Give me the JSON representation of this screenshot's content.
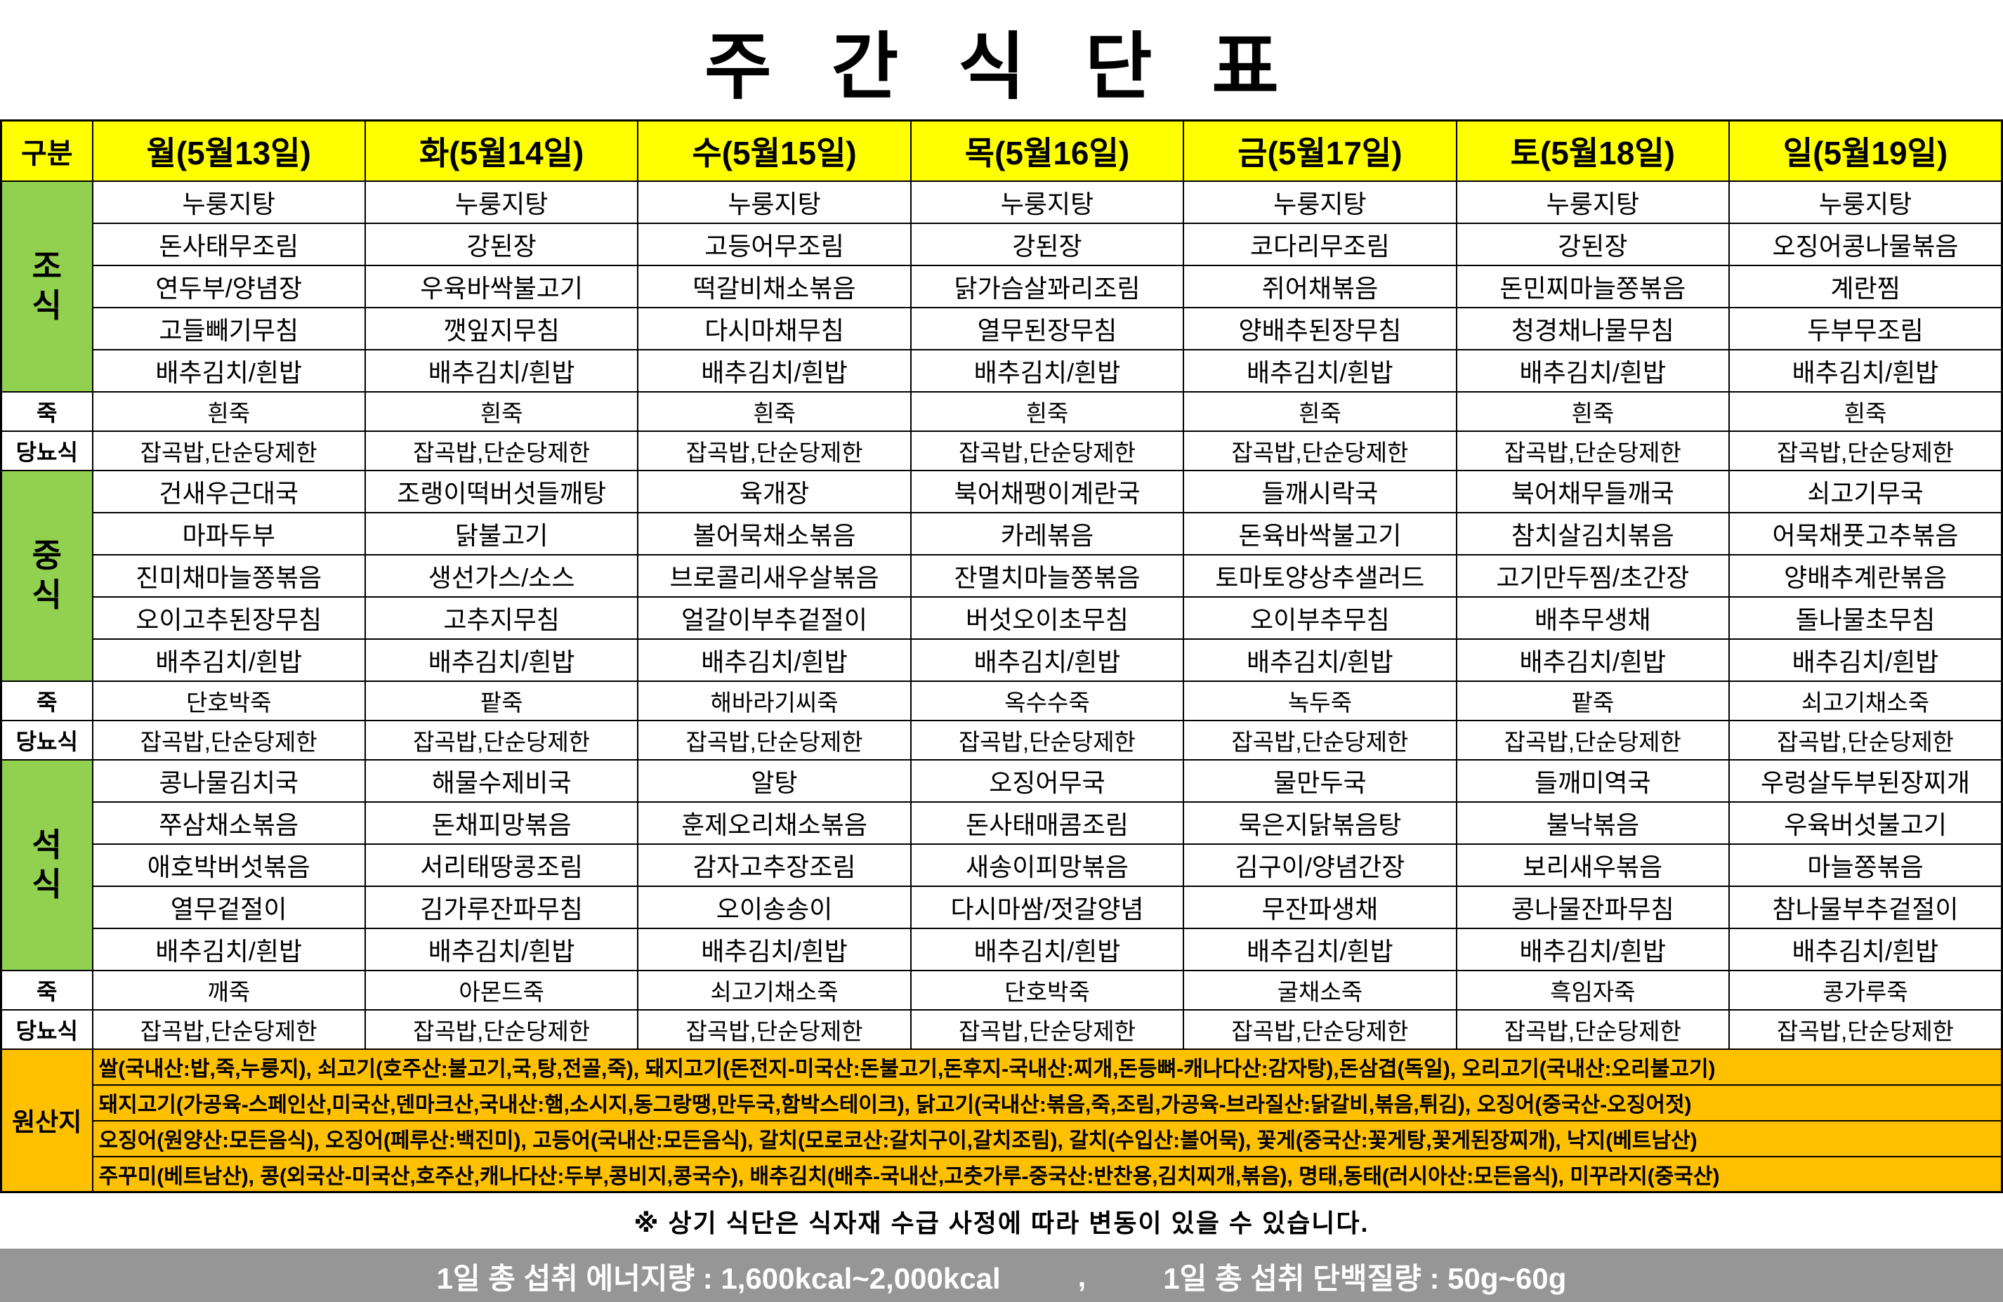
{
  "title": "주 간 식 단 표",
  "colors": {
    "header_bg": "#ffff00",
    "meal_label_bg": "#92d050",
    "origin_bg": "#ffc000",
    "footer_bg": "#969696",
    "footer_text": "#ffffff"
  },
  "header": {
    "corner": "구분",
    "days": [
      "월(5월13일)",
      "화(5월14일)",
      "수(5월15일)",
      "목(5월16일)",
      "금(5월17일)",
      "토(5월18일)",
      "일(5월19일)"
    ]
  },
  "labels": {
    "breakfast": "조식",
    "lunch": "중식",
    "dinner": "석식",
    "porridge": "죽",
    "diabetic": "당뇨식",
    "origin": "원산지"
  },
  "meals": {
    "breakfast": {
      "rows": [
        [
          "누룽지탕",
          "누룽지탕",
          "누룽지탕",
          "누룽지탕",
          "누룽지탕",
          "누룽지탕",
          "누룽지탕"
        ],
        [
          "돈사태무조림",
          "강된장",
          "고등어무조림",
          "강된장",
          "코다리무조림",
          "강된장",
          "오징어콩나물볶음"
        ],
        [
          "연두부/양념장",
          "우육바싹불고기",
          "떡갈비채소볶음",
          "닭가슴살꽈리조림",
          "쥐어채볶음",
          "돈민찌마늘쫑볶음",
          "계란찜"
        ],
        [
          "고들빼기무침",
          "깻잎지무침",
          "다시마채무침",
          "열무된장무침",
          "양배추된장무침",
          "청경채나물무침",
          "두부무조림"
        ],
        [
          "배추김치/흰밥",
          "배추김치/흰밥",
          "배추김치/흰밥",
          "배추김치/흰밥",
          "배추김치/흰밥",
          "배추김치/흰밥",
          "배추김치/흰밥"
        ]
      ]
    },
    "lunch": {
      "rows": [
        [
          "건새우근대국",
          "조랭이떡버섯들깨탕",
          "육개장",
          "북어채팽이계란국",
          "들깨시락국",
          "북어채무들깨국",
          "쇠고기무국"
        ],
        [
          "마파두부",
          "닭불고기",
          "볼어묵채소볶음",
          "카레볶음",
          "돈육바싹불고기",
          "참치살김치볶음",
          "어묵채풋고추볶음"
        ],
        [
          "진미채마늘쫑볶음",
          "생선가스/소스",
          "브로콜리새우살볶음",
          "잔멸치마늘쫑볶음",
          "토마토양상추샐러드",
          "고기만두찜/초간장",
          "양배추계란볶음"
        ],
        [
          "오이고추된장무침",
          "고추지무침",
          "얼갈이부추겉절이",
          "버섯오이초무침",
          "오이부추무침",
          "배추무생채",
          "돌나물초무침"
        ],
        [
          "배추김치/흰밥",
          "배추김치/흰밥",
          "배추김치/흰밥",
          "배추김치/흰밥",
          "배추김치/흰밥",
          "배추김치/흰밥",
          "배추김치/흰밥"
        ]
      ]
    },
    "dinner": {
      "rows": [
        [
          "콩나물김치국",
          "해물수제비국",
          "알탕",
          "오징어무국",
          "물만두국",
          "들깨미역국",
          "우렁살두부된장찌개"
        ],
        [
          "쭈삼채소볶음",
          "돈채피망볶음",
          "훈제오리채소볶음",
          "돈사태매콤조림",
          "묵은지닭볶음탕",
          "불낙볶음",
          "우육버섯불고기"
        ],
        [
          "애호박버섯볶음",
          "서리태땅콩조림",
          "감자고추장조림",
          "새송이피망볶음",
          "김구이/양념간장",
          "보리새우볶음",
          "마늘쫑볶음"
        ],
        [
          "열무겉절이",
          "김가루잔파무침",
          "오이송송이",
          "다시마쌈/젓갈양념",
          "무잔파생채",
          "콩나물잔파무침",
          "참나물부추겉절이"
        ],
        [
          "배추김치/흰밥",
          "배추김치/흰밥",
          "배추김치/흰밥",
          "배추김치/흰밥",
          "배추김치/흰밥",
          "배추김치/흰밥",
          "배추김치/흰밥"
        ]
      ]
    }
  },
  "porridge": {
    "rows": [
      [
        "흰죽",
        "흰죽",
        "흰죽",
        "흰죽",
        "흰죽",
        "흰죽",
        "흰죽"
      ],
      [
        "단호박죽",
        "팥죽",
        "해바라기씨죽",
        "옥수수죽",
        "녹두죽",
        "팥죽",
        "쇠고기채소죽"
      ],
      [
        "깨죽",
        "아몬드죽",
        "쇠고기채소죽",
        "단호박죽",
        "굴채소죽",
        "흑임자죽",
        "콩가루죽"
      ]
    ]
  },
  "diabetic": {
    "rows": [
      [
        "잡곡밥,단순당제한",
        "잡곡밥,단순당제한",
        "잡곡밥,단순당제한",
        "잡곡밥,단순당제한",
        "잡곡밥,단순당제한",
        "잡곡밥,단순당제한",
        "잡곡밥,단순당제한"
      ],
      [
        "잡곡밥,단순당제한",
        "잡곡밥,단순당제한",
        "잡곡밥,단순당제한",
        "잡곡밥,단순당제한",
        "잡곡밥,단순당제한",
        "잡곡밥,단순당제한",
        "잡곡밥,단순당제한"
      ],
      [
        "잡곡밥,단순당제한",
        "잡곡밥,단순당제한",
        "잡곡밥,단순당제한",
        "잡곡밥,단순당제한",
        "잡곡밥,단순당제한",
        "잡곡밥,단순당제한",
        "잡곡밥,단순당제한"
      ]
    ]
  },
  "origin": {
    "lines": [
      "쌀(국내산:밥,죽,누룽지), 쇠고기(호주산:불고기,국,탕,전골,죽), 돼지고기(돈전지-미국산:돈불고기,돈후지-국내산:찌개,돈등뼈-캐나다산:감자탕),돈삼겹(독일), 오리고기(국내산:오리불고기)",
      "돼지고기(가공육-스페인산,미국산,덴마크산,국내산:햄,소시지,동그랑땡,만두국,함박스테이크), 닭고기(국내산:볶음,죽,조림,가공육-브라질산:닭갈비,볶음,튀김), 오징어(중국산-오징어젓)",
      "오징어(원양산:모든음식), 오징어(페루산:백진미), 고등어(국내산:모든음식), 갈치(모로코산:갈치구이,갈치조림), 갈치(수입산:볼어묵), 꽃게(중국산:꽃게탕,꽃게된장찌개), 낙지(베트남산)",
      "주꾸미(베트남산), 콩(외국산-미국산,호주산,캐나다산:두부,콩비지,콩국수), 배추김치(배추-국내산,고춧가루-중국산:반찬용,김치찌개,볶음), 명태,동태(러시아산:모든음식), 미꾸라지(중국산)"
    ]
  },
  "note": "※ 상기 식단은 식자재 수급 사정에 따라 변동이 있을 수 있습니다.",
  "footer": {
    "energy": "1일 총 섭취 에너지량   : 1,600kcal~2,000kcal",
    "comma": ",",
    "protein": "1일 총 섭취 단백질량 : 50g~60g"
  }
}
